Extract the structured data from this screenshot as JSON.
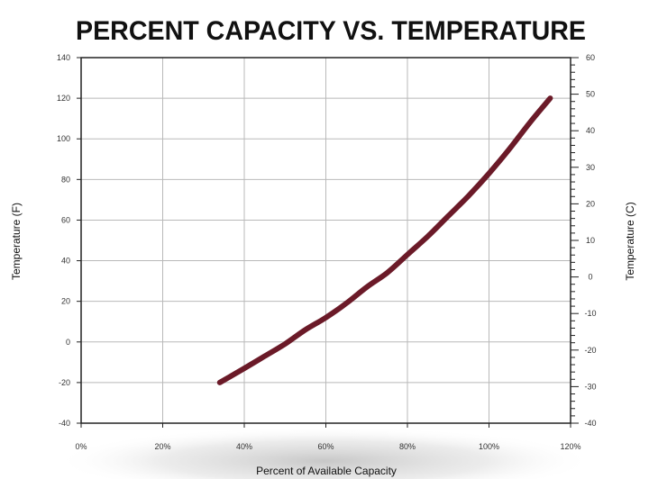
{
  "chart_data": {
    "type": "line",
    "title": "PERCENT CAPACITY VS. TEMPERATURE",
    "xlabel": "Percent of Available Capacity",
    "ylabel_left": "Temperature (F)",
    "ylabel_right": "Temperature (C)",
    "xlim": [
      0,
      120
    ],
    "ylim_left": [
      -40,
      140
    ],
    "ylim_right": [
      -40,
      60
    ],
    "x_ticks": [
      "0%",
      "20%",
      "40%",
      "60%",
      "80%",
      "100%",
      "120%"
    ],
    "y_ticks_left": [
      "140",
      "120",
      "100",
      "80",
      "60",
      "40",
      "20",
      "0",
      "-20",
      "-40"
    ],
    "y_ticks_right": [
      "60",
      "50",
      "40",
      "30",
      "20",
      "10",
      "0",
      "-10",
      "-20",
      "-30",
      "-40"
    ],
    "grid": true,
    "series": [
      {
        "color": "#6b1a28",
        "x": [
          34,
          40,
          45,
          50,
          55,
          60,
          65,
          70,
          75,
          80,
          85,
          90,
          95,
          100,
          105,
          110,
          115
        ],
        "y": [
          -20,
          -13,
          -7,
          -1,
          6,
          12,
          19,
          27,
          34,
          43,
          52,
          62,
          72,
          83,
          95,
          108,
          120
        ]
      }
    ]
  }
}
